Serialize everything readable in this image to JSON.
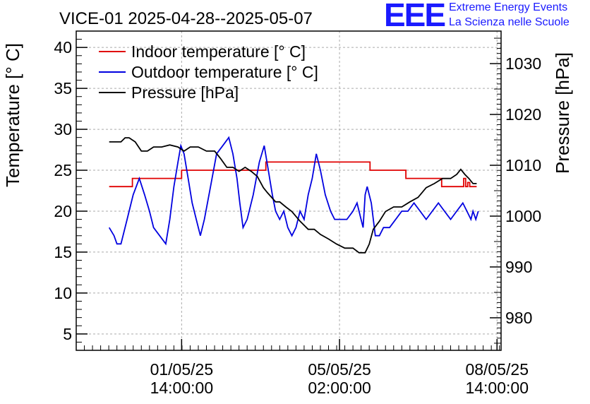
{
  "brand": {
    "logo": "EEE",
    "line1": "Extreme Energy Events",
    "line2": "La Scienza nelle Scuole",
    "color": "#1a1aff"
  },
  "chart_data": {
    "type": "line",
    "title": "VICE-01 2025-04-28--2025-05-07",
    "ylabel": "Temperature [° C]",
    "y2label": "Pressure [hPa]",
    "ylim": [
      3,
      42
    ],
    "y2lim": [
      973.6,
      1036.4
    ],
    "yticks": [
      5,
      10,
      15,
      20,
      25,
      30,
      35,
      40
    ],
    "y2ticks": [
      980,
      990,
      1000,
      1010,
      1020,
      1030
    ],
    "xlim": [
      0,
      10.44
    ],
    "xticks": [
      {
        "x": 2.59,
        "label1": "01/05/25",
        "label2": "14:00:00"
      },
      {
        "x": 6.47,
        "label1": "05/05/25",
        "label2": "02:00:00"
      },
      {
        "x": 10.34,
        "label1": "08/05/25",
        "label2": "14:00:00"
      }
    ],
    "x_unit": "days since the left edge of the plot",
    "grid": true,
    "legend": "top-left",
    "series": [
      {
        "name": "Indoor temperature [° C]",
        "color": "#e00000",
        "axis": "left",
        "x": [
          0.81,
          1.38,
          1.38,
          2.59,
          2.59,
          3.69,
          3.69,
          4.66,
          4.66,
          7.22,
          7.22,
          8.1,
          8.1,
          8.98,
          8.98,
          9.33,
          9.33,
          9.52,
          9.52,
          9.57,
          9.57,
          9.62,
          9.62,
          9.67,
          9.67,
          9.72,
          9.72,
          9.84
        ],
        "y": [
          23,
          23,
          24,
          24,
          25,
          25,
          25,
          25,
          26,
          26,
          25,
          25,
          24,
          24,
          23,
          23,
          23,
          23,
          24,
          24,
          23,
          23,
          23.5,
          23.5,
          23,
          23,
          23,
          23
        ]
      },
      {
        "name": "Outdoor temperature [° C]",
        "color": "#0000e0",
        "axis": "left",
        "x": [
          0.81,
          0.93,
          1.0,
          1.1,
          1.25,
          1.4,
          1.55,
          1.68,
          1.8,
          1.9,
          2.05,
          2.2,
          2.3,
          2.4,
          2.5,
          2.57,
          2.65,
          2.75,
          2.85,
          2.95,
          3.05,
          3.15,
          3.3,
          3.45,
          3.6,
          3.75,
          3.85,
          3.95,
          4.02,
          4.1,
          4.2,
          4.35,
          4.5,
          4.62,
          4.72,
          4.82,
          4.9,
          5.0,
          5.1,
          5.2,
          5.3,
          5.4,
          5.5,
          5.6,
          5.7,
          5.8,
          5.9,
          6.0,
          6.12,
          6.25,
          6.35,
          6.5,
          6.65,
          6.8,
          6.9,
          7.0,
          7.05,
          7.1,
          7.15,
          7.25,
          7.35,
          7.45,
          7.55,
          7.7,
          7.85,
          8.0,
          8.15,
          8.3,
          8.45,
          8.6,
          8.75,
          8.9,
          9.05,
          9.2,
          9.35,
          9.5,
          9.6,
          9.7,
          9.75,
          9.82,
          9.88
        ],
        "y": [
          18,
          17,
          16,
          16,
          19,
          22,
          24,
          22,
          20,
          18,
          17,
          16,
          19,
          23,
          26,
          28,
          27,
          24,
          21,
          19,
          17,
          19,
          23,
          27,
          28,
          29,
          27,
          24,
          21,
          18,
          19,
          22,
          26,
          28,
          25,
          22,
          20,
          19,
          20,
          18,
          17,
          18,
          20,
          19,
          22,
          24,
          27,
          25,
          22,
          20,
          19,
          19,
          19,
          20,
          21,
          19,
          18,
          22,
          23,
          21,
          17,
          17,
          18,
          18,
          19,
          20,
          20,
          21,
          20,
          19,
          20,
          21,
          20,
          19,
          20,
          21,
          20,
          19,
          20,
          19,
          20
        ]
      },
      {
        "name": "Pressure [hPa]",
        "color": "#000000",
        "axis": "right",
        "x": [
          0.81,
          1.1,
          1.2,
          1.3,
          1.45,
          1.6,
          1.75,
          1.9,
          2.1,
          2.3,
          2.5,
          2.65,
          2.8,
          3.0,
          3.2,
          3.4,
          3.55,
          3.7,
          3.85,
          4.0,
          4.15,
          4.3,
          4.45,
          4.6,
          4.7,
          4.8,
          4.9,
          5.0,
          5.15,
          5.3,
          5.5,
          5.7,
          5.85,
          6.0,
          6.2,
          6.4,
          6.6,
          6.8,
          6.95,
          7.1,
          7.2,
          7.3,
          7.45,
          7.6,
          7.8,
          8.0,
          8.2,
          8.4,
          8.6,
          8.8,
          9.0,
          9.2,
          9.35,
          9.45,
          9.55,
          9.65,
          9.75,
          9.84
        ],
        "y": [
          1014.6,
          1014.6,
          1015.4,
          1015.4,
          1014.6,
          1012.8,
          1012.8,
          1013.6,
          1013.6,
          1014,
          1013.6,
          1012.8,
          1013.6,
          1013.6,
          1012.8,
          1012.8,
          1011.3,
          1009.6,
          1009.6,
          1008.8,
          1009.6,
          1008.8,
          1007.8,
          1005.6,
          1004.6,
          1003.7,
          1002.8,
          1002.8,
          1001.8,
          1000.9,
          999,
          997.4,
          997.4,
          996.4,
          995.5,
          994.5,
          993.7,
          993.7,
          992.8,
          992.8,
          994.5,
          997.4,
          999,
          1000.9,
          1001.8,
          1001.8,
          1002.8,
          1003.7,
          1005.6,
          1006.4,
          1007.4,
          1007.4,
          1008.2,
          1009.2,
          1008.2,
          1007.4,
          1006.4,
          1006.4
        ]
      }
    ]
  }
}
